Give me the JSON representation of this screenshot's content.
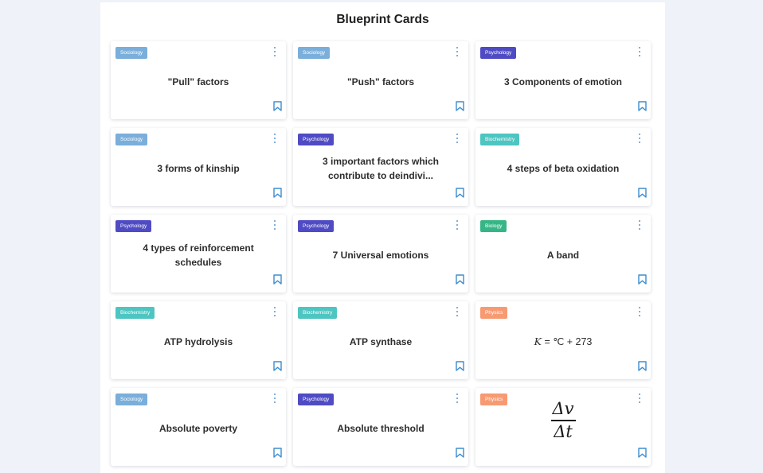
{
  "page": {
    "title": "Blueprint Cards"
  },
  "colors": {
    "Sociology": "#7aaedb",
    "Psychology": "#4f4bc4",
    "Biochemistry": "#4dc5c1",
    "Biology": "#36b687",
    "Physics": "#f79a72",
    "icon": "#3d8dd1"
  },
  "cards": [
    {
      "category": "Sociology",
      "text": "\"Pull\" factors"
    },
    {
      "category": "Sociology",
      "text": "\"Push\" factors"
    },
    {
      "category": "Psychology",
      "text": "3 Components of emotion"
    },
    {
      "category": "Sociology",
      "text": "3 forms of kinship"
    },
    {
      "category": "Psychology",
      "text": "3 important factors which contribute to deindivi..."
    },
    {
      "category": "Biochemistry",
      "text": "4 steps of beta oxidation"
    },
    {
      "category": "Psychology",
      "text": "4 types of reinforcement schedules"
    },
    {
      "category": "Psychology",
      "text": "7 Universal emotions"
    },
    {
      "category": "Biology",
      "text": "A band"
    },
    {
      "category": "Biochemistry",
      "text": "ATP hydrolysis"
    },
    {
      "category": "Biochemistry",
      "text": "ATP synthase"
    },
    {
      "category": "Physics",
      "formula": {
        "lhs": "K",
        "eq": " = ",
        "rhs": "℃ + 273"
      }
    },
    {
      "category": "Sociology",
      "text": "Absolute poverty"
    },
    {
      "category": "Psychology",
      "text": "Absolute threshold"
    },
    {
      "category": "Physics",
      "fraction": {
        "numerator": "Δv",
        "denominator": "Δt"
      }
    }
  ],
  "icons": {
    "menu": "more-vertical-icon",
    "bookmark": "bookmark-icon"
  }
}
